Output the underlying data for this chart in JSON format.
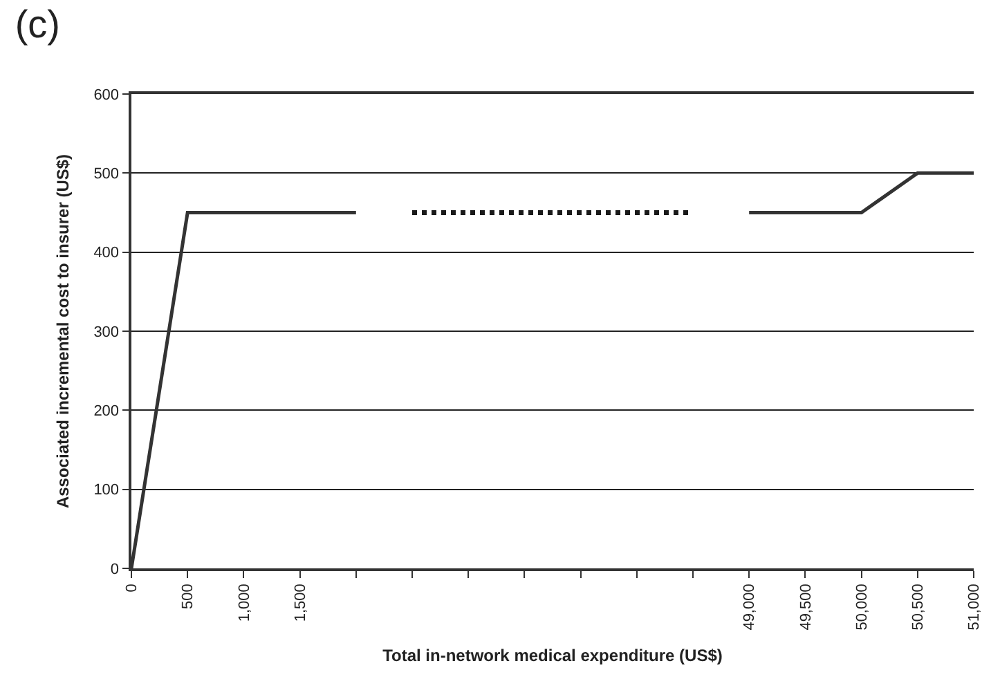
{
  "chart_data": {
    "type": "line",
    "title": "(c)",
    "xlabel": "Total in-network medical expenditure (US$)",
    "ylabel": "Associated incremental cost to insurer (US$)",
    "categories": [
      "0",
      "500",
      "1,000",
      "1,500",
      null,
      null,
      null,
      null,
      null,
      null,
      null,
      "49,000",
      "49,500",
      "50,000",
      "50,500",
      "51,000"
    ],
    "series": [
      {
        "color": "#333333",
        "line_style": "solid",
        "values": [
          0,
          450,
          450,
          450,
          450,
          null,
          null,
          null,
          null,
          null,
          null,
          450,
          450,
          450,
          500,
          500
        ]
      },
      {
        "color": "#1a1a1a",
        "line_style": "dotted",
        "values": [
          null,
          null,
          null,
          null,
          null,
          450,
          450,
          450,
          450,
          450,
          450,
          null,
          null,
          null,
          null,
          null
        ]
      }
    ],
    "ylim": [
      0,
      600
    ],
    "yticks": [
      0,
      100,
      200,
      300,
      400,
      500,
      600
    ],
    "grid": "y",
    "legend": false,
    "marker": "none"
  }
}
